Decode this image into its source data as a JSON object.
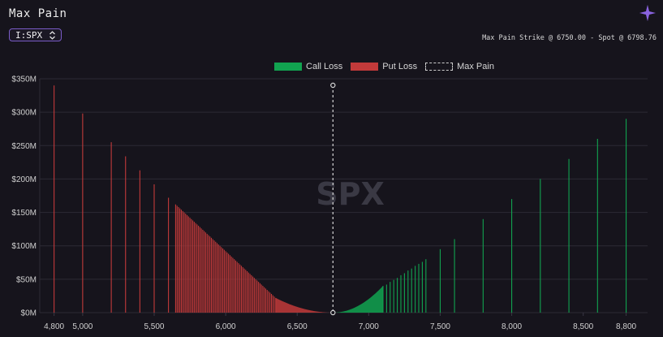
{
  "header": {
    "title": "Max Pain",
    "ticker_value": "I:SPX",
    "summary": "Max Pain Strike @ 6750.00 - Spot @ 6798.76",
    "icons": {
      "app": "sparkle-icon",
      "select_arrows": "chevron-updown-icon"
    }
  },
  "colors": {
    "call": "#11a350",
    "put": "#c23a3a",
    "max_pain": "#d6d6d6",
    "accent": "#7a5cc8",
    "background": "#16141c"
  },
  "chart_data": {
    "type": "bar",
    "title": "",
    "watermark": "SPX",
    "legend": [
      "Call Loss",
      "Put Loss",
      "Max Pain"
    ],
    "legend_position": "top-center",
    "grid": true,
    "xlim": [
      4700,
      8950
    ],
    "ylim": [
      0,
      350
    ],
    "y_unit": "$M",
    "x_ticks": [
      4800,
      5000,
      5500,
      6000,
      6500,
      7000,
      7500,
      8000,
      8500,
      8800
    ],
    "x_tick_labels": [
      "4,800",
      "5,000",
      "5,500",
      "6,000",
      "6,500",
      "7,000",
      "7,500",
      "8,000",
      "8,500",
      "8,800"
    ],
    "y_ticks": [
      0,
      50,
      100,
      150,
      200,
      250,
      300,
      350
    ],
    "y_tick_labels": [
      "$0M",
      "$50M",
      "$100M",
      "$150M",
      "$200M",
      "$250M",
      "$300M",
      "$350M"
    ],
    "max_pain_strike": 6750,
    "series": [
      {
        "name": "Put Loss",
        "strikes": [
          4800,
          5000,
          5200,
          5300,
          5400,
          5500,
          5600,
          5650,
          5660,
          5670,
          5680,
          5690,
          5700,
          5710,
          5720,
          5730,
          5740,
          5750,
          5760,
          5770,
          5780,
          5790,
          5800,
          5810,
          5820,
          5830,
          5840,
          5850,
          5860,
          5870,
          5880,
          5890,
          5900,
          5910,
          5920,
          5930,
          5940,
          5950,
          5960,
          5970,
          5980,
          5990,
          6000,
          6010,
          6020,
          6030,
          6040,
          6050,
          6060,
          6070,
          6080,
          6090,
          6100,
          6110,
          6120,
          6130,
          6140,
          6150,
          6160,
          6170,
          6180,
          6190,
          6200,
          6210,
          6220,
          6230,
          6240,
          6250,
          6260,
          6270,
          6280,
          6290,
          6300,
          6310,
          6320,
          6330,
          6340,
          6350
        ],
        "values": [
          340,
          298,
          255,
          234,
          213,
          192,
          172,
          162,
          160,
          158,
          156,
          154,
          152,
          150,
          148,
          146,
          144,
          142,
          140,
          138,
          136,
          134,
          132,
          130,
          128,
          126,
          124,
          122,
          120,
          118,
          116,
          114,
          112,
          110,
          108,
          106,
          104,
          102,
          100,
          98,
          96,
          94,
          92,
          90,
          88,
          86,
          84,
          82,
          80,
          78,
          76,
          74,
          72,
          70,
          68,
          66,
          64,
          62,
          60,
          58,
          56,
          54,
          52,
          50,
          48,
          46,
          44,
          42,
          40,
          38,
          36,
          34,
          32,
          30,
          28,
          26,
          24,
          22
        ]
      },
      {
        "name": "Call Loss",
        "strikes": [
          7100,
          7125,
          7150,
          7175,
          7200,
          7225,
          7250,
          7275,
          7300,
          7325,
          7350,
          7375,
          7400,
          7500,
          7600,
          7800,
          8000,
          8200,
          8400,
          8600,
          8800
        ],
        "values": [
          40,
          42,
          46,
          49,
          52,
          56,
          59,
          63,
          66,
          70,
          73,
          76,
          80,
          95,
          110,
          140,
          170,
          200,
          230,
          260,
          290
        ]
      }
    ]
  },
  "legend_labels": {
    "call": "Call Loss",
    "put": "Put Loss",
    "max_pain": "Max Pain"
  }
}
